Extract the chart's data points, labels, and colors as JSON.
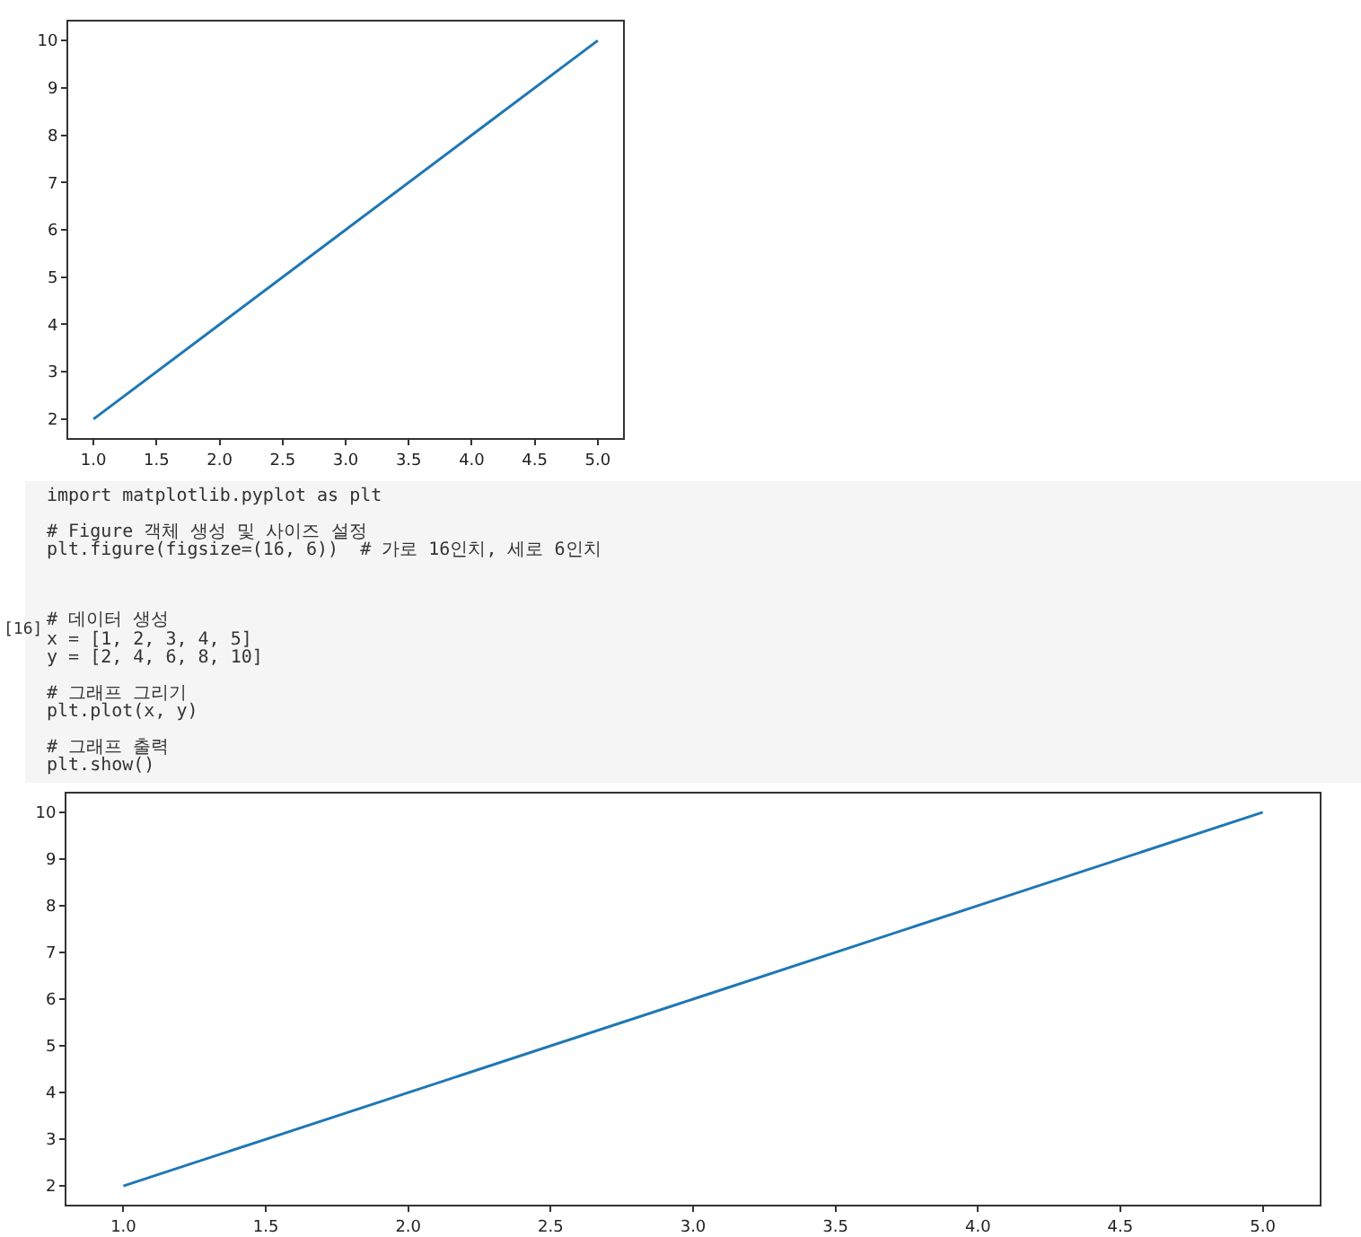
{
  "chart_data": [
    {
      "type": "line",
      "x": [
        1,
        2,
        3,
        4,
        5
      ],
      "series": [
        {
          "color": "#1f77b4",
          "values": [
            2,
            4,
            6,
            8,
            10
          ]
        }
      ],
      "xlim": [
        0.8,
        5.2
      ],
      "ylim": [
        1.6,
        10.4
      ],
      "xticks": [
        {
          "value": 1,
          "label": "1.0"
        },
        {
          "value": 1.5,
          "label": "1.5"
        },
        {
          "value": 2,
          "label": "2.0"
        },
        {
          "value": 2.5,
          "label": "2.5"
        },
        {
          "value": 3,
          "label": "3.0"
        },
        {
          "value": 3.5,
          "label": "3.5"
        },
        {
          "value": 4,
          "label": "4.0"
        },
        {
          "value": 4.5,
          "label": "4.5"
        },
        {
          "value": 5,
          "label": "5.0"
        }
      ],
      "yticks": [
        2,
        3,
        4,
        5,
        6,
        7,
        8,
        9,
        10
      ]
    },
    {
      "type": "other",
      "annotations": [
        "[16]",
        "import matplotlib.pyplot as plt\n\n# Figure 객체 생성 및 사이즈 설정\nplt.figure(figsize=(16, 6))  # 가로 16인치, 세로 6인치\n\n\n\n# 데이터 생성\nx = [1, 2, 3, 4, 5]\ny = [2, 4, 6, 8, 10]\n\n# 그래프 그리기\nplt.plot(x, y)\n\n# 그래프 출력\nplt.show()"
      ]
    },
    {
      "type": "line",
      "x": [
        1,
        2,
        3,
        4,
        5
      ],
      "series": [
        {
          "color": "#1f77b4",
          "values": [
            2,
            4,
            6,
            8,
            10
          ]
        }
      ],
      "xlim": [
        0.8,
        5.2
      ],
      "ylim": [
        1.6,
        10.4
      ],
      "xticks": [
        {
          "value": 1,
          "label": "1.0"
        },
        {
          "value": 1.5,
          "label": "1.5"
        },
        {
          "value": 2,
          "label": "2.0"
        },
        {
          "value": 2.5,
          "label": "2.5"
        },
        {
          "value": 3,
          "label": "3.0"
        },
        {
          "value": 3.5,
          "label": "3.5"
        },
        {
          "value": 4,
          "label": "4.0"
        },
        {
          "value": 4.5,
          "label": "4.5"
        },
        {
          "value": 5,
          "label": "5.0"
        }
      ],
      "yticks": [
        2,
        3,
        4,
        5,
        6,
        7,
        8,
        9,
        10
      ]
    }
  ]
}
